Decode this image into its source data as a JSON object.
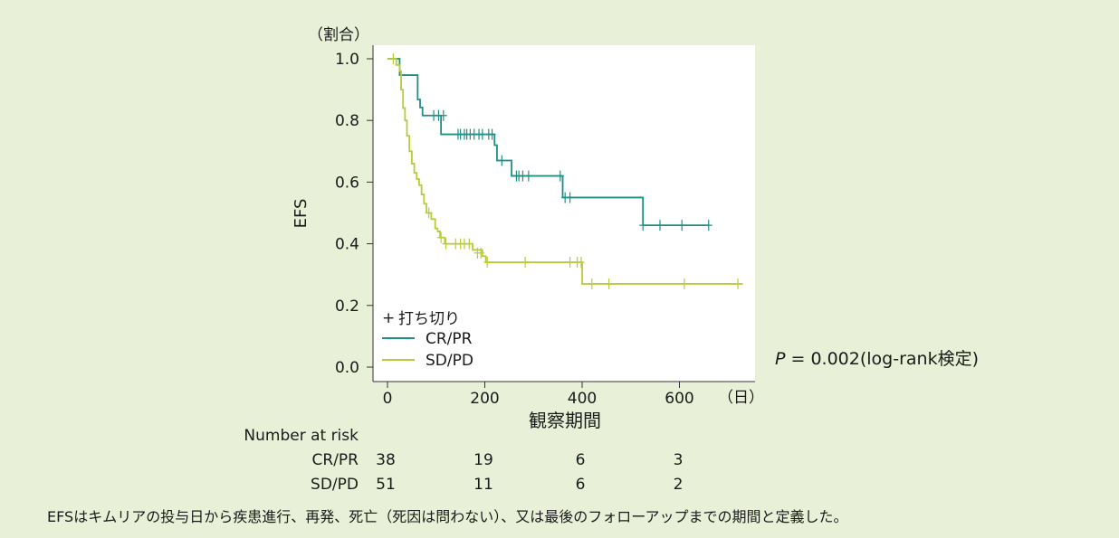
{
  "chart_data": {
    "type": "line",
    "subtype": "kaplan-meier step",
    "title": "",
    "y_unit_label": "（割合）",
    "ylabel": "EFS",
    "xlabel": "観察期間",
    "x_unit_label": "（日）",
    "xlim": [
      0,
      740
    ],
    "ylim": [
      0,
      1.0
    ],
    "x_ticks": [
      "0",
      "200",
      "400",
      "600"
    ],
    "y_ticks": [
      "0.0",
      "0.2",
      "0.4",
      "0.6",
      "0.8",
      "1.0"
    ],
    "grid": false,
    "legend": {
      "placement": "bottom-left",
      "censor_label": "打ち切り",
      "censor_symbol": "+",
      "entries": [
        "CR/PR",
        "SD/PD"
      ]
    },
    "series": [
      {
        "name": "CR/PR",
        "color": "#1f8f86",
        "steps": [
          [
            0,
            1.0
          ],
          [
            25,
            0.947
          ],
          [
            62,
            0.868
          ],
          [
            67,
            0.842
          ],
          [
            72,
            0.816
          ],
          [
            110,
            0.755
          ],
          [
            220,
            0.72
          ],
          [
            225,
            0.67
          ],
          [
            255,
            0.62
          ],
          [
            360,
            0.55
          ],
          [
            525,
            0.46
          ],
          [
            660,
            0.46
          ]
        ],
        "censored": [
          [
            95,
            0.816
          ],
          [
            105,
            0.816
          ],
          [
            115,
            0.816
          ],
          [
            145,
            0.755
          ],
          [
            150,
            0.755
          ],
          [
            158,
            0.755
          ],
          [
            163,
            0.755
          ],
          [
            170,
            0.755
          ],
          [
            178,
            0.755
          ],
          [
            188,
            0.755
          ],
          [
            195,
            0.755
          ],
          [
            208,
            0.755
          ],
          [
            215,
            0.755
          ],
          [
            235,
            0.67
          ],
          [
            265,
            0.62
          ],
          [
            270,
            0.62
          ],
          [
            278,
            0.62
          ],
          [
            290,
            0.62
          ],
          [
            355,
            0.62
          ],
          [
            365,
            0.55
          ],
          [
            375,
            0.55
          ],
          [
            525,
            0.46
          ],
          [
            560,
            0.46
          ],
          [
            605,
            0.46
          ],
          [
            660,
            0.46
          ]
        ]
      },
      {
        "name": "SD/PD",
        "color": "#b7cc3a",
        "steps": [
          [
            0,
            1.0
          ],
          [
            18,
            0.98
          ],
          [
            25,
            0.96
          ],
          [
            28,
            0.9
          ],
          [
            32,
            0.84
          ],
          [
            36,
            0.8
          ],
          [
            40,
            0.75
          ],
          [
            45,
            0.7
          ],
          [
            50,
            0.66
          ],
          [
            55,
            0.63
          ],
          [
            60,
            0.61
          ],
          [
            65,
            0.59
          ],
          [
            70,
            0.56
          ],
          [
            75,
            0.53
          ],
          [
            80,
            0.5
          ],
          [
            90,
            0.48
          ],
          [
            98,
            0.45
          ],
          [
            103,
            0.44
          ],
          [
            108,
            0.42
          ],
          [
            118,
            0.4
          ],
          [
            175,
            0.38
          ],
          [
            195,
            0.36
          ],
          [
            202,
            0.34
          ],
          [
            400,
            0.27
          ],
          [
            730,
            0.27
          ]
        ],
        "censored": [
          [
            12,
            1.0
          ],
          [
            85,
            0.5
          ],
          [
            110,
            0.42
          ],
          [
            120,
            0.4
          ],
          [
            140,
            0.4
          ],
          [
            150,
            0.4
          ],
          [
            158,
            0.4
          ],
          [
            168,
            0.4
          ],
          [
            185,
            0.37
          ],
          [
            192,
            0.37
          ],
          [
            205,
            0.34
          ],
          [
            283,
            0.34
          ],
          [
            375,
            0.34
          ],
          [
            390,
            0.34
          ],
          [
            398,
            0.34
          ],
          [
            420,
            0.27
          ],
          [
            455,
            0.27
          ],
          [
            610,
            0.27
          ],
          [
            720,
            0.27
          ]
        ]
      }
    ],
    "number_at_risk": {
      "title": "Number at risk",
      "rows": [
        {
          "label": "CR/PR",
          "values": [
            "38",
            "19",
            "6",
            "3"
          ]
        },
        {
          "label": "SD/PD",
          "values": [
            "51",
            "11",
            "6",
            "2"
          ]
        }
      ]
    },
    "annotation": {
      "p_symbol": "P",
      "p_text": " = 0.002(log-rank検定)"
    }
  },
  "footnote": "EFSはキムリアの投与日から疾患進行、再発、死亡（死因は問わない）、又は最後のフォローアップまでの期間と定義した。"
}
